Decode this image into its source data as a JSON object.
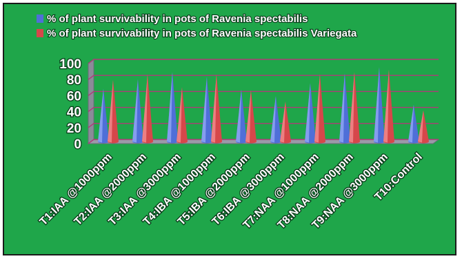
{
  "chart_data": {
    "type": "bar",
    "shape": "cone",
    "categories": [
      "T1:IAA @1000ppm",
      "T2:IAA @2000ppm",
      "T3:IAA @3000ppm",
      "T4:IBA @1000ppm",
      "T5:IBA @2000ppm",
      "T6:IBA @3000ppm",
      "T7:NAA @1000ppm",
      "T8:NAA @2000ppm",
      "T9:NAA @3000ppm",
      "T10:Control"
    ],
    "series": [
      {
        "name": "% of plant survivability in pots of Ravenia spectabilis",
        "color": "#4f6fd8",
        "values": [
          66,
          78,
          87,
          81,
          65,
          57,
          73,
          85,
          93,
          46
        ]
      },
      {
        "name": "% of plant survivability in pots of Ravenia spectabilis Variegata",
        "color": "#d6474a",
        "values": [
          77,
          84,
          68,
          84,
          64,
          50,
          84,
          87,
          90,
          39
        ]
      }
    ],
    "ylim": [
      0,
      100
    ],
    "yticks": [
      0,
      20,
      40,
      60,
      80,
      100
    ],
    "grid": true,
    "legend": "top-left",
    "background": "#1fa64a"
  }
}
